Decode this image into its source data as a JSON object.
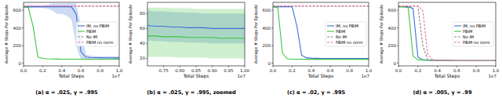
{
  "chart_data": [
    {
      "type": "line",
      "title": "(a) α = .025, γ = .995",
      "x_label": "Total Steps",
      "y_label": "Average # Steps Per Episode",
      "annotations": [
        "1e7"
      ],
      "legend": "center right",
      "grid": false,
      "x": [
        0,
        0.05,
        0.1,
        0.15,
        0.2,
        0.25,
        0.3,
        0.35,
        0.4,
        0.45,
        0.5,
        0.55,
        0.6,
        0.65,
        0.7,
        0.75,
        0.8,
        0.85,
        0.9,
        0.95,
        1.0
      ],
      "xlim": [
        0,
        1.0
      ],
      "xticks": [
        {
          "value": 0,
          "label": "0.0"
        },
        0.2,
        0.4,
        0.6,
        0.8,
        {
          "value": 1.0,
          "label": "1.0"
        }
      ],
      "ylim": [
        -30,
        690
      ],
      "yticks": [
        0,
        200,
        400,
        600
      ],
      "series": [
        {
          "name": "IM, no PBIM",
          "color": "#3f6fd8",
          "line_style": "solid",
          "values": [
            640,
            640,
            640,
            640,
            640,
            640,
            640,
            640,
            640,
            640,
            640,
            560,
            130,
            70,
            65,
            63,
            62,
            61,
            61,
            60,
            60
          ],
          "upper": [
            655,
            655,
            655,
            655,
            655,
            660,
            680,
            680,
            680,
            680,
            680,
            680,
            420,
            100,
            85,
            82,
            80,
            80,
            80,
            80,
            80
          ],
          "lower": [
            625,
            625,
            625,
            625,
            625,
            620,
            600,
            560,
            560,
            540,
            500,
            200,
            40,
            40,
            40,
            40,
            40,
            40,
            40,
            40,
            40
          ]
        },
        {
          "name": "PBIM",
          "color": "#3cc43c",
          "line_style": "solid",
          "values": [
            640,
            630,
            420,
            70,
            55,
            50,
            48,
            47,
            46,
            46,
            45,
            45,
            45,
            45,
            45,
            45,
            45,
            45,
            45,
            45,
            45
          ]
        },
        {
          "name": "No IM",
          "color": "#888888",
          "line_style": "dashed",
          "values": [
            645,
            645,
            645,
            645,
            645,
            645,
            645,
            645,
            645,
            645,
            645,
            645,
            645,
            645,
            645,
            645,
            645,
            645,
            645,
            645,
            645
          ]
        },
        {
          "name": "PBIM no norm",
          "color": "#f06fa8",
          "line_style": "dashed",
          "values": [
            650,
            650,
            650,
            650,
            650,
            650,
            650,
            650,
            650,
            650,
            650,
            650,
            650,
            650,
            650,
            650,
            650,
            650,
            650,
            650,
            650
          ]
        }
      ]
    },
    {
      "type": "line",
      "title": "(b) α = .025, γ = .995, zoomed",
      "x_label": "Total Steps",
      "y_label": "Average # Steps Per Episode",
      "annotations": [
        "1e7"
      ],
      "grid": false,
      "x": [
        0.7,
        0.725,
        0.75,
        0.775,
        0.8,
        0.825,
        0.85,
        0.875,
        0.9,
        0.925,
        0.95,
        0.975,
        1.0
      ],
      "xlim": [
        0.7,
        1.0
      ],
      "xticks": [
        0.75,
        {
          "value": 0.8,
          "label": "0.80"
        },
        0.85,
        {
          "value": 0.9,
          "label": "0.90"
        },
        0.95,
        {
          "value": 1.0,
          "label": "1.00"
        }
      ],
      "ylim": [
        10,
        95
      ],
      "yticks": [
        20,
        40,
        60,
        80
      ],
      "series": [
        {
          "color": "#3f6fd8",
          "line_style": "solid",
          "values": [
            64,
            63,
            63,
            62,
            62,
            61,
            61,
            61,
            60,
            60,
            60,
            60,
            60
          ],
          "upper": [
            84,
            83,
            83,
            82,
            82,
            81,
            81,
            80,
            80,
            80,
            80,
            80,
            80
          ],
          "lower": [
            44,
            43,
            43,
            42,
            42,
            41,
            41,
            41,
            40,
            40,
            40,
            40,
            40
          ]
        },
        {
          "color": "#3cc43c",
          "line_style": "solid",
          "values": [
            50,
            50,
            49,
            49,
            49,
            48,
            48,
            48,
            48,
            47,
            47,
            47,
            47
          ],
          "upper": [
            88,
            88,
            88,
            87,
            87,
            87,
            86,
            86,
            86,
            86,
            86,
            86,
            86
          ],
          "lower": [
            22,
            22,
            22,
            22,
            21,
            21,
            21,
            21,
            20,
            20,
            20,
            20,
            20
          ]
        }
      ]
    },
    {
      "type": "line",
      "title": "(c) α = .02, γ = .995",
      "x_label": "Total Steps",
      "y_label": "Average # Steps Per Episode",
      "annotations": [
        "1e7"
      ],
      "legend": "center right",
      "grid": false,
      "x": [
        0,
        0.05,
        0.1,
        0.15,
        0.2,
        0.25,
        0.3,
        0.35,
        0.4,
        0.45,
        0.5,
        0.55,
        0.6,
        0.65,
        0.7,
        0.75,
        0.8,
        0.85,
        0.9,
        0.95,
        1.0
      ],
      "xlim": [
        0,
        1.0
      ],
      "xticks": [
        {
          "value": 0,
          "label": "0.0"
        },
        0.2,
        0.4,
        0.6,
        0.8,
        {
          "value": 1.0,
          "label": "1.0"
        }
      ],
      "ylim": [
        -30,
        690
      ],
      "yticks": [
        0,
        200,
        400,
        600
      ],
      "series": [
        {
          "name": "IM, no PBIM",
          "color": "#3f6fd8",
          "line_style": "solid",
          "values": [
            640,
            640,
            640,
            640,
            640,
            420,
            90,
            62,
            58,
            56,
            55,
            55,
            55,
            55,
            55,
            55,
            55,
            55,
            55,
            55,
            55
          ]
        },
        {
          "name": "PBIM",
          "color": "#3cc43c",
          "line_style": "solid",
          "values": [
            640,
            630,
            110,
            50,
            46,
            45,
            45,
            44,
            44,
            44,
            44,
            44,
            44,
            44,
            44,
            44,
            44,
            44,
            44,
            44,
            44
          ]
        },
        {
          "name": "No IM",
          "color": "#888888",
          "line_style": "dashed",
          "values": [
            645,
            645,
            645,
            645,
            645,
            645,
            645,
            645,
            645,
            645,
            645,
            645,
            645,
            645,
            645,
            645,
            645,
            645,
            645,
            645,
            645
          ]
        },
        {
          "name": "PBIM no norm",
          "color": "#f06fa8",
          "line_style": "dashed",
          "values": [
            650,
            650,
            650,
            650,
            650,
            650,
            650,
            650,
            650,
            650,
            650,
            650,
            650,
            650,
            650,
            650,
            650,
            650,
            650,
            650,
            650
          ]
        }
      ]
    },
    {
      "type": "line",
      "title": "(d) α = .005, γ = .99",
      "x_label": "Total Steps",
      "y_label": "Average # Steps Per Episode",
      "annotations": [
        "1e7"
      ],
      "legend": "center right",
      "grid": false,
      "x": [
        0,
        0.05,
        0.1,
        0.15,
        0.2,
        0.25,
        0.3,
        0.35,
        0.4,
        0.45,
        0.5,
        0.55,
        0.6,
        0.65,
        0.7,
        0.75,
        0.8,
        0.85,
        0.9,
        0.95,
        1.0
      ],
      "xlim": [
        0,
        1.0
      ],
      "xticks": [
        {
          "value": 0,
          "label": "0.0"
        },
        0.2,
        0.4,
        0.6,
        0.8,
        {
          "value": 1.0,
          "label": "1.0"
        }
      ],
      "ylim": [
        -30,
        690
      ],
      "yticks": [
        0,
        200,
        400,
        600
      ],
      "series": [
        {
          "name": "IM, no PBIM",
          "color": "#3f6fd8",
          "line_style": "solid",
          "values": [
            640,
            640,
            640,
            620,
            70,
            40,
            35,
            33,
            32,
            32,
            31,
            31,
            30,
            30,
            30,
            30,
            30,
            30,
            30,
            30,
            30
          ]
        },
        {
          "name": "PBIM",
          "color": "#3cc43c",
          "line_style": "solid",
          "values": [
            640,
            640,
            630,
            80,
            40,
            35,
            33,
            32,
            31,
            31,
            30,
            30,
            30,
            30,
            30,
            30,
            30,
            30,
            30,
            30,
            30
          ]
        },
        {
          "name": "No IM",
          "color": "#888888",
          "line_style": "dashed",
          "values": [
            645,
            645,
            645,
            645,
            645,
            200,
            40,
            35,
            33,
            32,
            31,
            30,
            30,
            30,
            30,
            30,
            30,
            30,
            30,
            30,
            30
          ]
        },
        {
          "name": "PBIM no norm",
          "color": "#f06fa8",
          "line_style": "dashed",
          "values": [
            650,
            650,
            650,
            650,
            650,
            600,
            100,
            40,
            35,
            33,
            32,
            31,
            30,
            30,
            30,
            30,
            30,
            30,
            30,
            30,
            30
          ]
        }
      ]
    }
  ]
}
